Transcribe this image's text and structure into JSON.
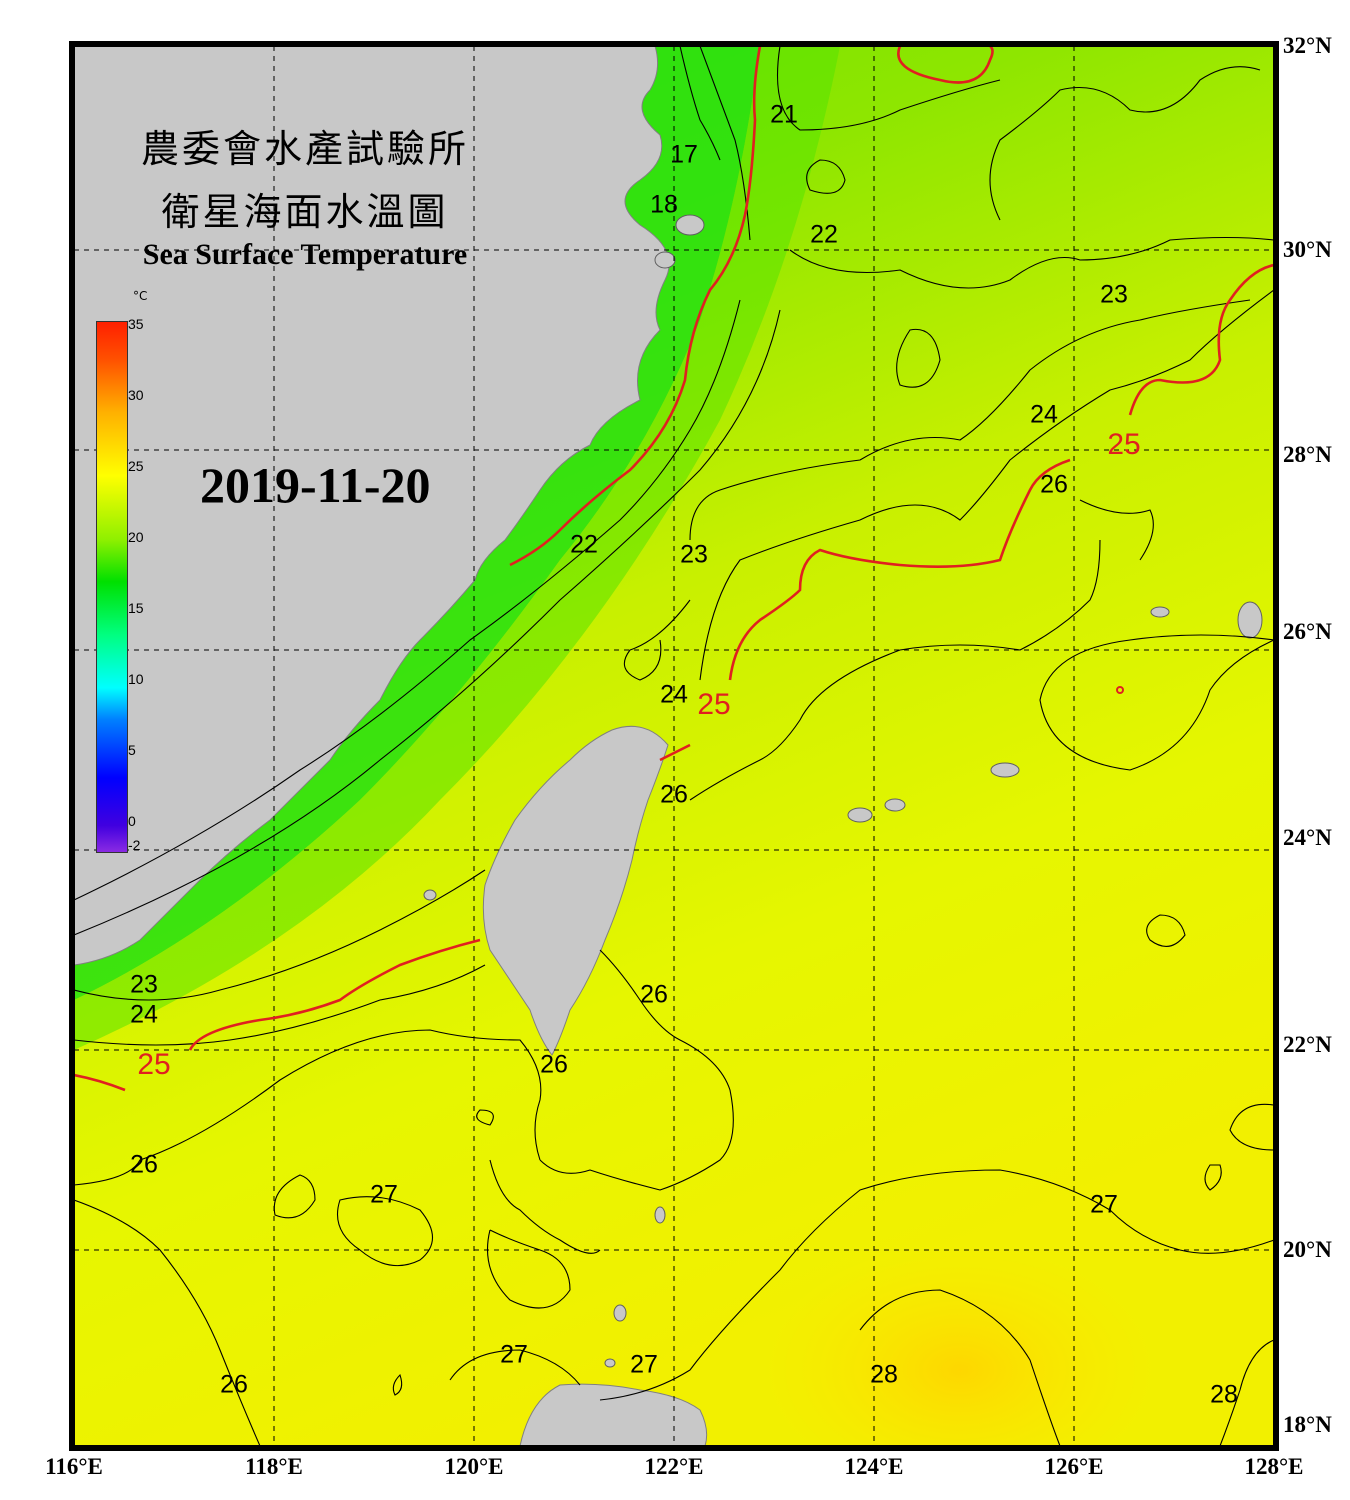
{
  "map": {
    "title_line1": "農委會水產試驗所",
    "title_line2": "衛星海面水溫圖",
    "title_en": "Sea Surface Temperature",
    "date": "2019-11-20",
    "lon_labels": [
      "116°E",
      "118°E",
      "120°E",
      "122°E",
      "124°E",
      "126°E",
      "128°E"
    ],
    "lat_labels": [
      "32°N",
      "30°N",
      "28°N",
      "26°N",
      "24°N",
      "22°N",
      "20°N",
      "18°N"
    ],
    "colorbar": {
      "unit": "°C",
      "ticks": [
        "35",
        "30",
        "25",
        "20",
        "15",
        "10",
        "5",
        "0",
        "-2"
      ],
      "min": -2,
      "max": 35
    },
    "contour_labels": [
      {
        "text": "17",
        "lon": 122.1,
        "lat": 30.9
      },
      {
        "text": "18",
        "lon": 121.9,
        "lat": 30.4
      },
      {
        "text": "21",
        "lon": 123.1,
        "lat": 31.3
      },
      {
        "text": "22",
        "lon": 123.5,
        "lat": 30.1
      },
      {
        "text": "23",
        "lon": 126.4,
        "lat": 29.5
      },
      {
        "text": "24",
        "lon": 125.7,
        "lat": 28.3
      },
      {
        "text": "25",
        "lon": 126.5,
        "lat": 28.0
      },
      {
        "text": "26",
        "lon": 125.8,
        "lat": 27.6
      },
      {
        "text": "22",
        "lon": 121.1,
        "lat": 27.0
      },
      {
        "text": "23",
        "lon": 122.2,
        "lat": 26.9
      },
      {
        "text": "24",
        "lon": 122.0,
        "lat": 25.5
      },
      {
        "text": "25",
        "lon": 122.4,
        "lat": 25.4
      },
      {
        "text": "26",
        "lon": 122.0,
        "lat": 24.5
      },
      {
        "text": "23",
        "lon": 116.7,
        "lat": 22.6
      },
      {
        "text": "24",
        "lon": 116.7,
        "lat": 22.3
      },
      {
        "text": "25",
        "lon": 116.8,
        "lat": 21.8
      },
      {
        "text": "26",
        "lon": 121.8,
        "lat": 22.5
      },
      {
        "text": "26",
        "lon": 120.8,
        "lat": 21.8
      },
      {
        "text": "26",
        "lon": 116.7,
        "lat": 20.8
      },
      {
        "text": "27",
        "lon": 119.1,
        "lat": 20.5
      },
      {
        "text": "27",
        "lon": 126.3,
        "lat": 20.4
      },
      {
        "text": "27",
        "lon": 120.4,
        "lat": 18.9
      },
      {
        "text": "27",
        "lon": 121.7,
        "lat": 18.8
      },
      {
        "text": "28",
        "lon": 124.1,
        "lat": 18.7
      },
      {
        "text": "28",
        "lon": 127.5,
        "lat": 18.5
      },
      {
        "text": "26",
        "lon": 117.6,
        "lat": 18.6
      }
    ]
  }
}
